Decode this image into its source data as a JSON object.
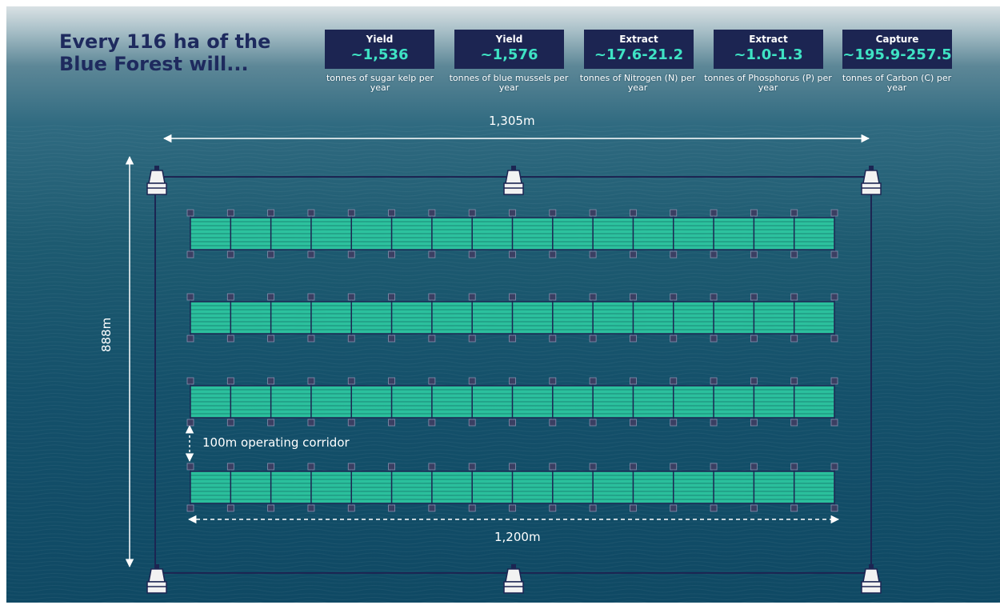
{
  "title": "Every 116 ha of the Blue Forest will...",
  "stats": [
    {
      "verb": "Yield",
      "value": "~1,536",
      "caption": "tonnes of sugar kelp per year"
    },
    {
      "verb": "Yield",
      "value": "~1,576",
      "caption": "tonnes of blue mussels per year"
    },
    {
      "verb": "Extract",
      "value": "~17.6-21.2",
      "caption": "tonnes of Nitrogen (N) per year"
    },
    {
      "verb": "Extract",
      "value": "~1.0-1.3",
      "caption": "tonnes of Phosphorus (P) per year"
    },
    {
      "verb": "Capture",
      "value": "~195.9-257.5",
      "caption": "tonnes of Carbon (C) per year"
    }
  ],
  "dimensions": {
    "site_width": "1,305m",
    "site_height": "888m",
    "corridor": "100m operating corridor",
    "row_length": "1,200m"
  },
  "layout_counts": {
    "farm_rows": 4,
    "segments_per_row": 16,
    "buoys_per_side": 3
  },
  "colors": {
    "title": "#1e2a5e",
    "stat_box": "#1c2552",
    "stat_value": "#3fe3c4",
    "farm_fill": "#2fd3a6",
    "frame_line": "#1c2552",
    "marker_square": "#3a3f62",
    "dimension_line": "#ffffff"
  }
}
